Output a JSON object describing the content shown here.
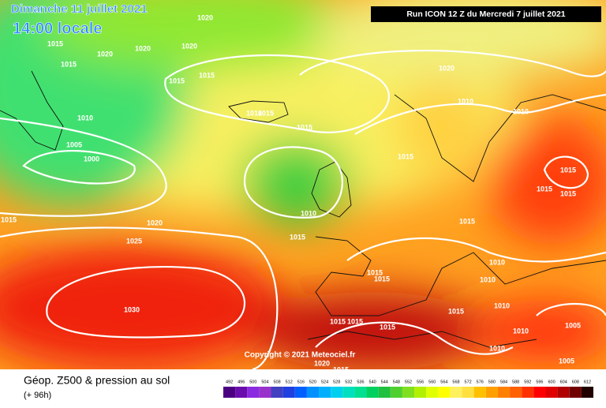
{
  "header": {
    "date": "Dimanche 11 juillet 2021",
    "time": "14:00 locale",
    "run": "Run ICON 12 Z du Mercredi 7 juillet 2021"
  },
  "copyright": "Copyright © 2021 Meteociel.fr",
  "footer": {
    "title": "Géop. Z500 & pression au sol",
    "lead": "(+ 96h)"
  },
  "scale": {
    "labels": [
      492,
      496,
      500,
      504,
      508,
      512,
      516,
      520,
      524,
      528,
      532,
      536,
      540,
      544,
      548,
      552,
      556,
      560,
      564,
      568,
      572,
      576,
      580,
      584,
      588,
      592,
      596,
      600,
      604,
      608,
      612
    ],
    "colors": [
      "#4b0082",
      "#6a0dad",
      "#8a2be2",
      "#9932cc",
      "#4040c0",
      "#2040e0",
      "#0060ff",
      "#0090ff",
      "#00b0ff",
      "#00d0f0",
      "#00e0c0",
      "#00e090",
      "#00d060",
      "#20c040",
      "#50d030",
      "#80e020",
      "#b0f000",
      "#e0ff00",
      "#ffff00",
      "#fff060",
      "#ffe040",
      "#ffc000",
      "#ffa000",
      "#ff8000",
      "#ff6000",
      "#ff3000",
      "#ff0000",
      "#e00000",
      "#b00000",
      "#700000",
      "#200000"
    ]
  },
  "isobar_labels": [
    1020,
    1015,
    1020,
    1020,
    1020,
    1015,
    1015,
    1015,
    1020,
    1010,
    1010,
    1010,
    1010,
    1015,
    1015,
    1005,
    1000,
    1015,
    1015,
    1015,
    1015,
    1010,
    1015,
    1020,
    1025,
    1015,
    1015,
    1015,
    1015,
    1010,
    1010,
    1030,
    1015,
    1015,
    1015,
    1015,
    1010,
    1010,
    1005,
    1010,
    1005,
    1020,
    1015
  ]
}
